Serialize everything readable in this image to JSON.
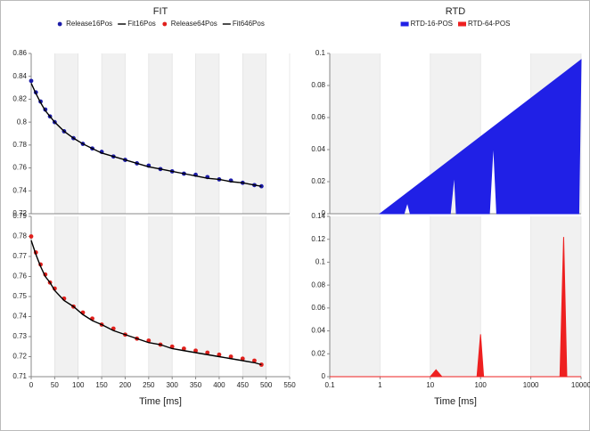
{
  "chart_data": [
    {
      "type": "scatter",
      "title": "FIT",
      "xlim": [
        0,
        550
      ],
      "xticks": [
        0,
        50,
        100,
        150,
        200,
        250,
        300,
        350,
        400,
        450,
        500,
        550
      ],
      "ylim": [
        0.72,
        0.86
      ],
      "yticks": [
        0.72,
        0.74,
        0.76,
        0.78,
        0.8,
        0.82,
        0.84,
        0.86
      ],
      "grid": true,
      "x": [
        0,
        10,
        20,
        30,
        40,
        50,
        70,
        90,
        110,
        130,
        150,
        175,
        200,
        225,
        250,
        275,
        300,
        325,
        350,
        375,
        400,
        425,
        450,
        475,
        490
      ],
      "series": [
        {
          "name": "Release16Pos",
          "color": "#1c1ca8",
          "style": "markers",
          "values": [
            0.836,
            0.826,
            0.818,
            0.811,
            0.805,
            0.8,
            0.792,
            0.786,
            0.781,
            0.777,
            0.774,
            0.77,
            0.767,
            0.764,
            0.762,
            0.759,
            0.757,
            0.755,
            0.754,
            0.752,
            0.75,
            0.749,
            0.747,
            0.745,
            0.744
          ]
        },
        {
          "name": "Fit16Pos",
          "color": "#000000",
          "style": "line",
          "values": [
            0.834,
            0.825,
            0.817,
            0.81,
            0.805,
            0.8,
            0.792,
            0.786,
            0.781,
            0.777,
            0.773,
            0.77,
            0.767,
            0.764,
            0.761,
            0.759,
            0.757,
            0.755,
            0.753,
            0.751,
            0.75,
            0.748,
            0.747,
            0.745,
            0.744
          ]
        }
      ]
    },
    {
      "type": "scatter",
      "x_label": "Time [ms]",
      "xlim": [
        0,
        550
      ],
      "xticks": [
        0,
        50,
        100,
        150,
        200,
        250,
        300,
        350,
        400,
        450,
        500,
        550
      ],
      "ylim": [
        0.71,
        0.79
      ],
      "yticks": [
        0.71,
        0.72,
        0.73,
        0.74,
        0.75,
        0.76,
        0.77,
        0.78,
        0.79
      ],
      "grid": true,
      "x": [
        0,
        10,
        20,
        30,
        40,
        50,
        70,
        90,
        110,
        130,
        150,
        175,
        200,
        225,
        250,
        275,
        300,
        325,
        350,
        375,
        400,
        425,
        450,
        475,
        490
      ],
      "series": [
        {
          "name": "Release64Pos",
          "color": "#e0201c",
          "style": "markers",
          "values": [
            0.78,
            0.772,
            0.766,
            0.761,
            0.757,
            0.754,
            0.749,
            0.745,
            0.742,
            0.739,
            0.736,
            0.734,
            0.731,
            0.729,
            0.728,
            0.726,
            0.725,
            0.724,
            0.723,
            0.722,
            0.721,
            0.72,
            0.719,
            0.718,
            0.716
          ]
        },
        {
          "name": "Fit646Pos",
          "color": "#000000",
          "style": "line",
          "values": [
            0.778,
            0.771,
            0.765,
            0.76,
            0.757,
            0.753,
            0.748,
            0.745,
            0.741,
            0.738,
            0.736,
            0.733,
            0.731,
            0.729,
            0.727,
            0.726,
            0.724,
            0.723,
            0.722,
            0.721,
            0.72,
            0.719,
            0.718,
            0.717,
            0.716
          ]
        }
      ]
    },
    {
      "type": "area",
      "title": "RTD",
      "x_scale": "log",
      "xlim": [
        0.1,
        10000
      ],
      "xticks": [
        0.1,
        1,
        10,
        100,
        1000,
        10000
      ],
      "ylim": [
        0,
        0.1
      ],
      "yticks": [
        0,
        0.02,
        0.04,
        0.06,
        0.08,
        0.1
      ],
      "grid": true,
      "series": [
        {
          "name": "RTD-16-POS",
          "color": "#2020e6",
          "x": [
            1,
            3,
            3.5,
            4,
            25,
            30,
            33,
            150,
            180,
            210,
            9000,
            10000
          ],
          "values": [
            0,
            0,
            0.007,
            0,
            0,
            0.025,
            0,
            0,
            0.045,
            0,
            0,
            0.096
          ]
        }
      ]
    },
    {
      "type": "area",
      "x_label": "Time [ms]",
      "x_scale": "log",
      "xlim": [
        0.1,
        10000
      ],
      "xticks": [
        0.1,
        1,
        10,
        100,
        1000,
        10000
      ],
      "ylim": [
        0,
        0.14
      ],
      "yticks": [
        0,
        0.02,
        0.04,
        0.06,
        0.08,
        0.1,
        0.12,
        0.14
      ],
      "grid": true,
      "series": [
        {
          "name": "RTD-64-POS",
          "color": "#ee2020",
          "x": [
            0.1,
            10,
            13,
            17,
            85,
            100,
            115,
            3800,
            4500,
            5200,
            10000
          ],
          "values": [
            0,
            0,
            0.006,
            0,
            0,
            0.037,
            0,
            0,
            0.122,
            0,
            0
          ]
        }
      ]
    }
  ]
}
